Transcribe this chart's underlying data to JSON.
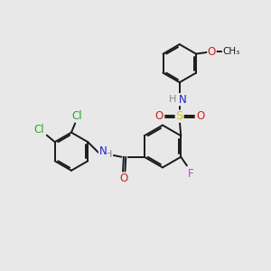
{
  "bg_color": "#e8e8e8",
  "bond_color": "#1a1a1a",
  "atom_colors": {
    "N": "#2020cc",
    "O": "#cc2020",
    "S": "#cccc00",
    "F": "#cc44cc",
    "Cl": "#22aa22",
    "H": "#888888",
    "C": "#1a1a1a"
  },
  "lw": 1.4,
  "dbl_sep": 0.07
}
